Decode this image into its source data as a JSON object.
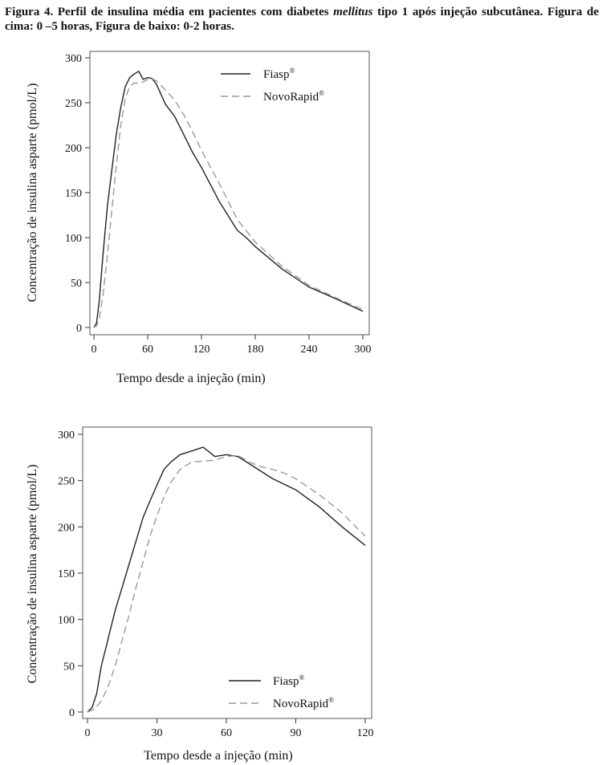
{
  "caption": {
    "part1": "Figura 4. Perfil de insulina média em pacientes com diabetes ",
    "italic": "mellitus",
    "part2": " tipo 1 após injeção subcutânea. Figura de cima: 0 –5 horas, Figura de baixo: 0-2 horas."
  },
  "chart_data": [
    {
      "type": "line",
      "xlabel": "Tempo desde a injeção (min)",
      "ylabel": "Concentração de insulina asparte (pmol/L)",
      "xlim": [
        0,
        300
      ],
      "ylim": [
        0,
        300
      ],
      "xticks": [
        0,
        60,
        120,
        180,
        240,
        300
      ],
      "yticks": [
        0,
        50,
        100,
        150,
        200,
        250,
        300
      ],
      "grid": false,
      "legend": "top-right",
      "series": [
        {
          "name": "Fiasp",
          "sup": "®",
          "style": "solid",
          "color": "#222222",
          "x": [
            0,
            3,
            6,
            10,
            15,
            20,
            25,
            30,
            35,
            40,
            45,
            50,
            55,
            60,
            65,
            70,
            80,
            90,
            100,
            110,
            120,
            140,
            160,
            170,
            180,
            210,
            240,
            270,
            300
          ],
          "y": [
            0,
            5,
            30,
            80,
            135,
            175,
            215,
            245,
            268,
            278,
            282,
            285,
            276,
            278,
            277,
            270,
            248,
            235,
            215,
            195,
            178,
            140,
            108,
            100,
            90,
            65,
            45,
            32,
            18
          ]
        },
        {
          "name": "NovoRapid",
          "sup": "®",
          "style": "dashed",
          "color": "#999999",
          "x": [
            0,
            3,
            6,
            10,
            15,
            20,
            25,
            30,
            35,
            40,
            45,
            50,
            55,
            60,
            65,
            70,
            80,
            90,
            100,
            110,
            120,
            140,
            160,
            180,
            210,
            240,
            270,
            300
          ],
          "y": [
            0,
            2,
            10,
            35,
            80,
            130,
            180,
            225,
            255,
            268,
            272,
            272,
            273,
            276,
            277,
            274,
            264,
            253,
            237,
            218,
            197,
            160,
            120,
            95,
            68,
            47,
            33,
            20
          ]
        }
      ]
    },
    {
      "type": "line",
      "xlabel": "Tempo desde a injeção (min)",
      "ylabel": "Concentração de insulina asparte (pmol/L)",
      "xlim": [
        0,
        120
      ],
      "ylim": [
        0,
        300
      ],
      "xticks": [
        0,
        30,
        60,
        90,
        120
      ],
      "yticks": [
        0,
        50,
        100,
        150,
        200,
        250,
        300
      ],
      "grid": false,
      "legend": "bottom-right",
      "series": [
        {
          "name": "Fiasp",
          "sup": "®",
          "style": "solid",
          "color": "#222222",
          "x": [
            0,
            2,
            4,
            6,
            8,
            10,
            12,
            15,
            18,
            21,
            24,
            27,
            30,
            33,
            36,
            40,
            45,
            50,
            55,
            60,
            65,
            70,
            75,
            80,
            90,
            100,
            110,
            120
          ],
          "y": [
            0,
            5,
            20,
            50,
            70,
            90,
            110,
            135,
            160,
            185,
            210,
            228,
            245,
            262,
            270,
            278,
            282,
            286,
            276,
            278,
            276,
            268,
            260,
            252,
            240,
            222,
            200,
            180
          ]
        },
        {
          "name": "NovoRapid",
          "sup": "®",
          "style": "dashed",
          "color": "#999999",
          "x": [
            0,
            3,
            6,
            9,
            12,
            15,
            18,
            21,
            24,
            27,
            30,
            33,
            36,
            40,
            45,
            50,
            55,
            60,
            65,
            70,
            75,
            80,
            85,
            90,
            100,
            110,
            120
          ],
          "y": [
            0,
            3,
            12,
            28,
            50,
            78,
            105,
            135,
            162,
            190,
            212,
            232,
            248,
            262,
            270,
            271,
            272,
            276,
            277,
            270,
            265,
            262,
            258,
            252,
            235,
            215,
            190
          ]
        }
      ]
    }
  ]
}
